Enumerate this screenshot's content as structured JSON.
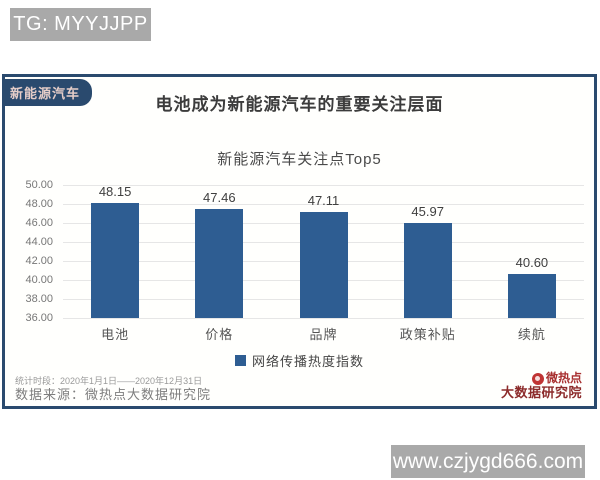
{
  "watermarks": {
    "tg_badge": "TG: MYYJJPP",
    "website_badge": "www.czjygd666.com"
  },
  "card": {
    "tag": "新能源汽车",
    "title": "电池成为新能源汽车的重要关注层面"
  },
  "chart_data": {
    "type": "bar",
    "title": "新能源汽车关注点Top5",
    "categories": [
      "电池",
      "价格",
      "品牌",
      "政策补贴",
      "续航"
    ],
    "values": [
      48.15,
      47.46,
      47.11,
      45.97,
      40.6
    ],
    "series_name": "网络传播热度指数",
    "legend": [
      "网络传播热度指数"
    ],
    "legend_position": "bottom",
    "xlabel": "",
    "ylabel": "",
    "ylim": [
      36,
      50
    ],
    "ytick_step": 2,
    "grid": true,
    "bar_color": "#2e5d92"
  },
  "footer": {
    "stats_period": "统计时段：2020年1月1日——2020年12月31日",
    "data_source": "数据来源：微热点大数据研究院",
    "logo_line1": "微热点",
    "logo_line2": "大数据研究院"
  },
  "colors": {
    "card_border": "#2a4a6e",
    "badge_gray": "#a9a9a9",
    "bar_blue": "#2e5d92",
    "logo_red": "#a83030"
  }
}
